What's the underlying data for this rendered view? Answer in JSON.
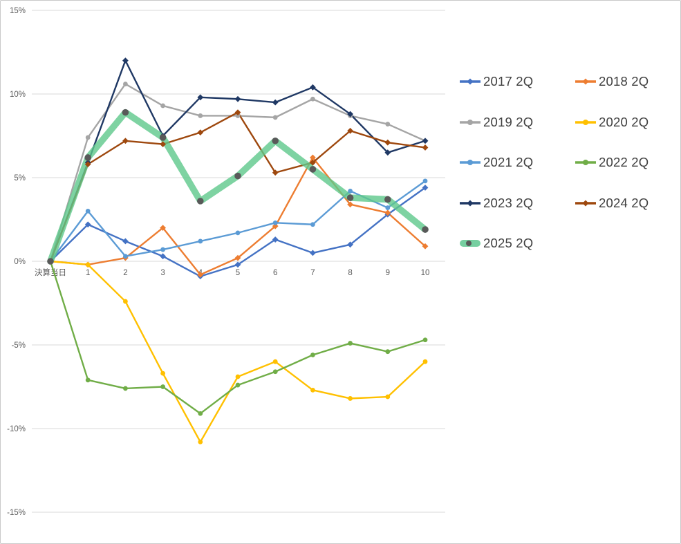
{
  "chart_data": {
    "type": "line",
    "title": "",
    "categories": [
      "決算当日",
      "1",
      "2",
      "3",
      "4",
      "5",
      "6",
      "7",
      "8",
      "9",
      "10"
    ],
    "y_ticks": [
      15,
      10,
      5,
      0,
      -5,
      -10,
      -15
    ],
    "y_tick_labels": [
      "15%",
      "10%",
      "5%",
      "0%",
      "-5%",
      "-10%",
      "-15%"
    ],
    "ylim": [
      -15.5,
      15.5
    ],
    "unit": "%",
    "grid": "horizontal-only",
    "legend_position": "right-two-columns",
    "series": [
      {
        "name": "2017 2Q",
        "color": "#4472C4",
        "marker": "diamond",
        "values": [
          0,
          2.2,
          1.2,
          0.3,
          -0.9,
          -0.2,
          1.3,
          0.5,
          1.0,
          2.8,
          4.4
        ]
      },
      {
        "name": "2018 2Q",
        "color": "#ED7D31",
        "marker": "diamond",
        "values": [
          0,
          -0.2,
          0.2,
          2.0,
          -0.8,
          0.2,
          2.1,
          6.2,
          3.4,
          2.9,
          0.9
        ]
      },
      {
        "name": "2019 2Q",
        "color": "#A5A5A5",
        "marker": "circle",
        "values": [
          0,
          7.4,
          10.6,
          9.3,
          8.7,
          8.7,
          8.6,
          9.7,
          8.7,
          8.2,
          7.2
        ]
      },
      {
        "name": "2020 2Q",
        "color": "#FFC000",
        "marker": "circle",
        "values": [
          0,
          -0.2,
          -2.4,
          -6.7,
          -10.8,
          -6.9,
          -6.0,
          -7.7,
          -8.2,
          -8.1,
          -6.0
        ]
      },
      {
        "name": "2021 2Q",
        "color": "#5B9BD5",
        "marker": "circle",
        "values": [
          0,
          3.0,
          0.3,
          0.7,
          1.2,
          1.7,
          2.3,
          2.2,
          4.2,
          3.2,
          4.8
        ]
      },
      {
        "name": "2022 2Q",
        "color": "#70AD47",
        "marker": "circle",
        "values": [
          0,
          -7.1,
          -7.6,
          -7.5,
          -9.1,
          -7.4,
          -6.6,
          -5.6,
          -4.9,
          -5.4,
          -4.7
        ]
      },
      {
        "name": "2023 2Q",
        "color": "#1F3864",
        "marker": "diamond",
        "values": [
          0,
          5.9,
          12.0,
          7.5,
          9.8,
          9.7,
          9.5,
          10.4,
          8.8,
          6.5,
          7.2
        ]
      },
      {
        "name": "2024 2Q",
        "color": "#9E480E",
        "marker": "diamond",
        "values": [
          0,
          5.8,
          7.2,
          7.0,
          7.7,
          8.9,
          5.3,
          5.9,
          7.8,
          7.1,
          6.8
        ]
      },
      {
        "name": "2025 2Q",
        "color": "#76CFA0",
        "marker": "circle",
        "marker_color": "#595959",
        "highlight_band": true,
        "values": [
          0,
          6.2,
          8.9,
          7.4,
          3.6,
          5.1,
          7.2,
          5.5,
          3.8,
          3.7,
          1.9
        ]
      }
    ],
    "styles": {
      "grid_color": "#D9D9D9",
      "tick_label_color": "#595959",
      "legend_text_color": "#404040",
      "background": "#FFFFFF",
      "frame_border": "#C9C9C9",
      "band_rgba": "rgba(94,200,139,0.8)"
    }
  }
}
